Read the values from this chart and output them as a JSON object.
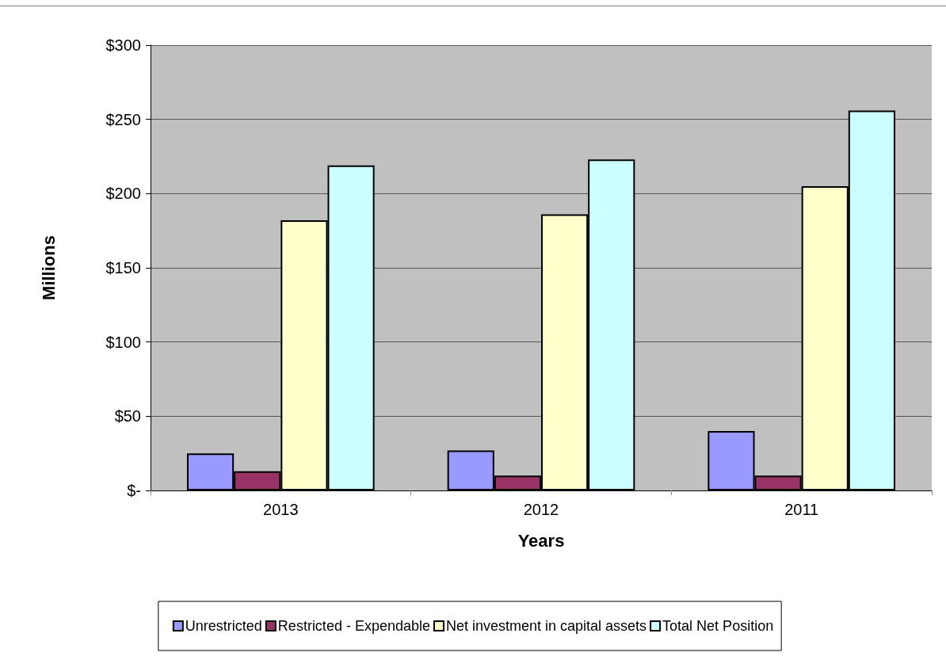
{
  "chart_data": {
    "type": "bar",
    "xlabel": "Years",
    "ylabel": "Millions",
    "categories": [
      "2013",
      "2012",
      "2011"
    ],
    "series": [
      {
        "name": "Unrestricted",
        "color": "#9999ff",
        "values": [
          25,
          27,
          40
        ]
      },
      {
        "name": "Restricted - Expendable",
        "color": "#993366",
        "values": [
          13,
          10,
          10
        ]
      },
      {
        "name": "Net investment in capital assets",
        "color": "#ffffcc",
        "values": [
          182,
          186,
          205
        ]
      },
      {
        "name": "Total Net Position",
        "color": "#ccffff",
        "values": [
          219,
          223,
          256
        ]
      }
    ],
    "ylim": [
      0,
      300
    ],
    "yticks": [
      {
        "value": 0,
        "label": "$-"
      },
      {
        "value": 50,
        "label": "$50"
      },
      {
        "value": 100,
        "label": "$100"
      },
      {
        "value": 150,
        "label": "$150"
      },
      {
        "value": 200,
        "label": "$200"
      },
      {
        "value": 250,
        "label": "$250"
      },
      {
        "value": 300,
        "label": "$300"
      }
    ],
    "grid": "y",
    "legend": "bottom"
  }
}
